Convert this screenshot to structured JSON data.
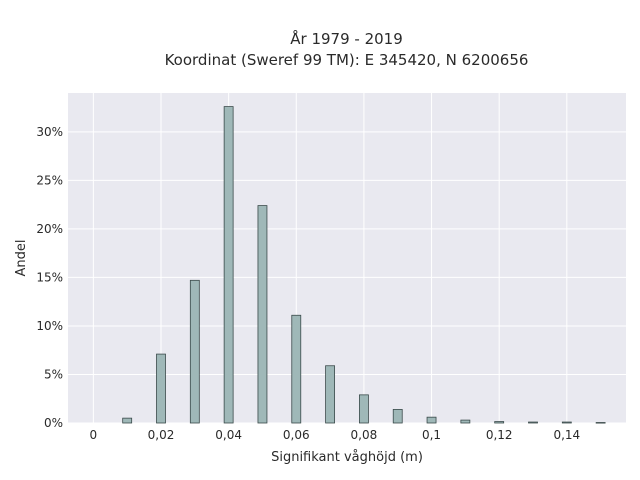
{
  "chart_data": {
    "type": "bar",
    "title": "År 1979 - 2019",
    "subtitle": "Koordinat (Sweref 99 TM): E 345420, N 6200656",
    "xlabel": "Signifikant våghöjd (m)",
    "ylabel": "Andel",
    "x": [
      0.01,
      0.02,
      0.03,
      0.04,
      0.05,
      0.06,
      0.07,
      0.08,
      0.09,
      0.1,
      0.11,
      0.12,
      0.13,
      0.14,
      0.15
    ],
    "values": [
      0.5,
      7.1,
      14.7,
      32.6,
      22.4,
      11.1,
      5.9,
      2.9,
      1.4,
      0.6,
      0.3,
      0.15,
      0.1,
      0.1,
      0.05
    ],
    "xlim": [
      -0.0075,
      0.1575
    ],
    "ylim": [
      0,
      34
    ],
    "x_ticks": [
      0,
      0.02,
      0.04,
      0.06,
      0.08,
      0.1,
      0.12,
      0.14
    ],
    "x_tick_labels": [
      "0",
      "0,02",
      "0,04",
      "0,06",
      "0,08",
      "0,1",
      "0,12",
      "0,14"
    ],
    "y_ticks": [
      0,
      5,
      10,
      15,
      20,
      25,
      30
    ],
    "y_tick_labels": [
      "0%",
      "5%",
      "10%",
      "15%",
      "20%",
      "25%",
      "30%"
    ],
    "bar_color": "#9fb8b8",
    "bar_edge_color": "#3a4a4a",
    "plot_bg": "#e9e9f0",
    "grid": true,
    "legend": false
  }
}
